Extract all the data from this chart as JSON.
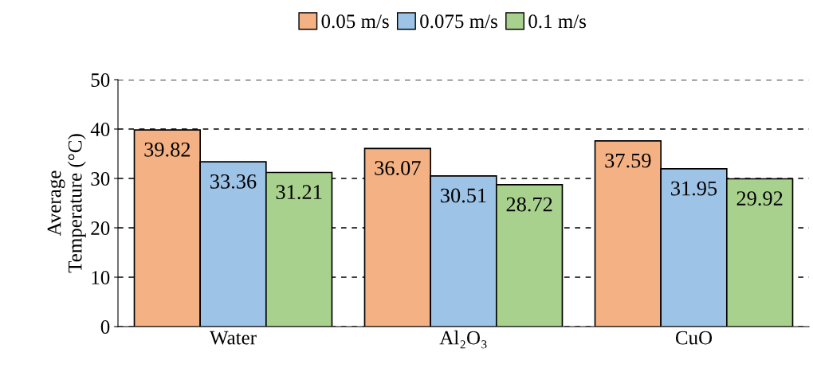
{
  "chart_data": {
    "type": "bar",
    "ylabel": "Average\nTemperature (°C)",
    "categories": [
      "Water",
      "Al₂O₃",
      "CuO"
    ],
    "series": [
      {
        "name": "0.05 m/s",
        "color": "#f4b183",
        "values": [
          39.82,
          36.07,
          37.59
        ]
      },
      {
        "name": "0.075 m/s",
        "color": "#9dc3e6",
        "values": [
          33.36,
          30.51,
          31.95
        ]
      },
      {
        "name": "0.1 m/s",
        "color": "#a9d18e",
        "values": [
          31.21,
          28.72,
          29.92
        ]
      }
    ],
    "ylim": [
      0,
      50
    ],
    "yticks": [
      0,
      10,
      20,
      30,
      40,
      50
    ],
    "grid": "y",
    "legend": "top",
    "data_labels": true
  }
}
